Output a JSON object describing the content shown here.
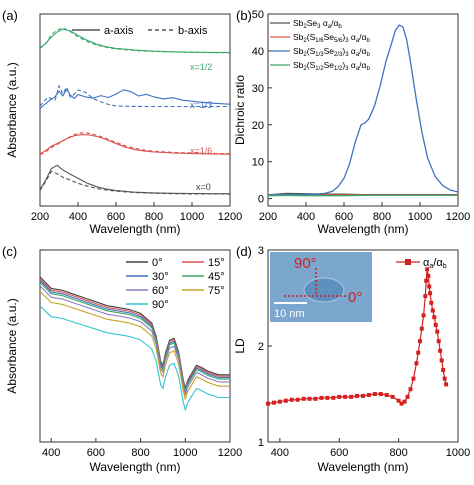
{
  "panels": {
    "a": {
      "label": "(a)"
    },
    "b": {
      "label": "(b)"
    },
    "c": {
      "label": "(c)"
    },
    "d": {
      "label": "(d)"
    }
  },
  "chart_data": [
    {
      "id": "a",
      "type": "line",
      "xlabel": "Wavelength (nm)",
      "ylabel": "Absorbance (a.u.)",
      "xlim": [
        200,
        1200
      ],
      "xticks": [
        200,
        400,
        600,
        800,
        1000,
        1200
      ],
      "yticks_shown": false,
      "legend": {
        "placement": "top",
        "entries": [
          {
            "name": "a-axis",
            "style": "solid"
          },
          {
            "name": "b-axis",
            "style": "dashed"
          }
        ]
      },
      "annotations": [
        "x=1/2",
        "x=1/3",
        "x=1/6",
        "x=0"
      ],
      "series": [
        {
          "name": "x=1/2 a-axis",
          "color": "#3aa86a",
          "style": "solid",
          "x": [
            200,
            230,
            260,
            290,
            320,
            360,
            400,
            450,
            500,
            550,
            600,
            700,
            800,
            900,
            1000,
            1100,
            1200
          ],
          "y": [
            0.822,
            0.848,
            0.88,
            0.906,
            0.921,
            0.912,
            0.889,
            0.862,
            0.842,
            0.829,
            0.821,
            0.812,
            0.806,
            0.803,
            0.801,
            0.8,
            0.799
          ]
        },
        {
          "name": "x=1/2 b-axis",
          "color": "#3aa86a",
          "style": "dashed",
          "x": [
            200,
            230,
            260,
            290,
            320,
            360,
            400,
            450,
            500,
            550,
            600,
            700,
            800,
            900,
            1000,
            1100,
            1200
          ],
          "y": [
            0.82,
            0.846,
            0.892,
            0.916,
            0.928,
            0.908,
            0.881,
            0.856,
            0.838,
            0.826,
            0.818,
            0.81,
            0.805,
            0.802,
            0.8,
            0.799,
            0.798
          ]
        },
        {
          "name": "x=1/3 a-axis",
          "color": "#3f72c0",
          "style": "solid",
          "x": [
            200,
            240,
            280,
            300,
            320,
            340,
            360,
            380,
            400,
            440,
            480,
            520,
            560,
            600,
            640,
            680,
            720,
            760,
            800,
            850,
            900,
            950,
            1000,
            1050,
            1100,
            1150,
            1200
          ],
          "y": [
            0.508,
            0.542,
            0.57,
            0.598,
            0.573,
            0.608,
            0.577,
            0.56,
            0.58,
            0.568,
            0.562,
            0.575,
            0.565,
            0.583,
            0.605,
            0.595,
            0.573,
            0.582,
            0.568,
            0.558,
            0.564,
            0.551,
            0.546,
            0.54,
            0.536,
            0.533,
            0.53
          ]
        },
        {
          "name": "x=1/3 b-axis",
          "color": "#3f72c0",
          "style": "dashed",
          "x": [
            200,
            240,
            280,
            300,
            320,
            340,
            360,
            380,
            400,
            440,
            480,
            520,
            560,
            600,
            640,
            680,
            720,
            760,
            800,
            850,
            900,
            950,
            1000,
            1050,
            1100,
            1150,
            1200
          ],
          "y": [
            0.52,
            0.566,
            0.552,
            0.626,
            0.584,
            0.619,
            0.566,
            0.582,
            0.604,
            0.592,
            0.56,
            0.542,
            0.529,
            0.521,
            0.52,
            0.519,
            0.519,
            0.518,
            0.518,
            0.518,
            0.518,
            0.518,
            0.518,
            0.518,
            0.518,
            0.518,
            0.518
          ]
        },
        {
          "name": "x=1/6 a-axis",
          "color": "#d9534f",
          "style": "solid",
          "x": [
            200,
            230,
            260,
            300,
            340,
            380,
            420,
            460,
            500,
            550,
            600,
            650,
            700,
            750,
            800,
            900,
            1000,
            1100,
            1200
          ],
          "y": [
            0.272,
            0.288,
            0.312,
            0.33,
            0.35,
            0.366,
            0.372,
            0.37,
            0.362,
            0.346,
            0.325,
            0.306,
            0.293,
            0.286,
            0.281,
            0.276,
            0.273,
            0.271,
            0.27
          ]
        },
        {
          "name": "x=1/6 b-axis",
          "color": "#d9534f",
          "style": "dashed",
          "x": [
            200,
            230,
            260,
            300,
            340,
            380,
            420,
            460,
            500,
            550,
            600,
            650,
            700,
            750,
            800,
            900,
            1000,
            1100,
            1200
          ],
          "y": [
            0.266,
            0.282,
            0.304,
            0.326,
            0.351,
            0.372,
            0.382,
            0.378,
            0.369,
            0.351,
            0.331,
            0.313,
            0.3,
            0.291,
            0.285,
            0.279,
            0.276,
            0.274,
            0.273
          ]
        },
        {
          "name": "x=0 a-axis",
          "color": "#555555",
          "style": "solid",
          "x": [
            200,
            230,
            260,
            290,
            320,
            360,
            400,
            450,
            500,
            550,
            600,
            700,
            800,
            900,
            1000,
            1100,
            1200
          ],
          "y": [
            0.085,
            0.135,
            0.195,
            0.212,
            0.188,
            0.165,
            0.145,
            0.118,
            0.1,
            0.088,
            0.08,
            0.072,
            0.068,
            0.066,
            0.065,
            0.064,
            0.064
          ]
        },
        {
          "name": "x=0 b-axis",
          "color": "#555555",
          "style": "dashed",
          "x": [
            200,
            230,
            260,
            290,
            320,
            360,
            400,
            450,
            500,
            550,
            600,
            700,
            800,
            900,
            1000,
            1100,
            1200
          ],
          "y": [
            0.08,
            0.128,
            0.18,
            0.168,
            0.15,
            0.135,
            0.118,
            0.103,
            0.091,
            0.083,
            0.077,
            0.07,
            0.066,
            0.064,
            0.063,
            0.063,
            0.062
          ]
        }
      ]
    },
    {
      "id": "b",
      "type": "line",
      "xlabel": "Wavelength (nm)",
      "ylabel": "Dichroic ratio",
      "xlim": [
        200,
        1200
      ],
      "ylim": [
        -2,
        50
      ],
      "xticks": [
        200,
        400,
        600,
        800,
        1000,
        1200
      ],
      "yticks": [
        0,
        10,
        20,
        30,
        40,
        50
      ],
      "legend": {
        "placement": "top-left"
      },
      "series": [
        {
          "name": "Sb2Se3 αa/αb",
          "color": "#555555",
          "x": [
            200,
            300,
            400,
            500,
            600,
            700,
            800,
            900,
            1000,
            1100,
            1200
          ],
          "y": [
            1.0,
            1.4,
            1.3,
            1.2,
            1.2,
            1.1,
            1.1,
            1.1,
            1.1,
            1.1,
            1.1
          ]
        },
        {
          "name": "Sb2(S1/6Se5/6)3 αa/αb",
          "color": "#d9534f",
          "x": [
            200,
            300,
            400,
            500,
            600,
            700,
            800,
            900,
            1000,
            1100,
            1200
          ],
          "y": [
            1.0,
            1.1,
            1.0,
            1.0,
            1.0,
            1.0,
            1.0,
            1.0,
            1.0,
            1.0,
            1.0
          ]
        },
        {
          "name": "Sb2(S1/3Se2/3)3 αa/αb",
          "color": "#3f72c0",
          "x": [
            200,
            300,
            400,
            450,
            500,
            540,
            570,
            600,
            630,
            660,
            690,
            710,
            730,
            760,
            790,
            820,
            850,
            870,
            890,
            910,
            930,
            950,
            980,
            1010,
            1040,
            1080,
            1120,
            1160,
            1200
          ],
          "y": [
            1.0,
            1.1,
            1.1,
            1.2,
            1.4,
            2.0,
            3.3,
            5.5,
            9.5,
            15.5,
            20.0,
            20.5,
            21.5,
            25.0,
            30.5,
            37.0,
            42.0,
            45.5,
            47.0,
            46.5,
            43.0,
            37.0,
            27.0,
            18.0,
            11.0,
            6.0,
            3.5,
            2.3,
            1.8
          ]
        },
        {
          "name": "Sb2(S1/2Se1/2)3 αa/αb",
          "color": "#3aa86a",
          "x": [
            200,
            300,
            400,
            500,
            600,
            700,
            800,
            900,
            1000,
            1100,
            1200
          ],
          "y": [
            0.8,
            0.9,
            0.8,
            0.8,
            0.8,
            0.9,
            0.9,
            0.9,
            0.9,
            0.9,
            0.9
          ]
        }
      ]
    },
    {
      "id": "c",
      "type": "line",
      "xlabel": "Wavelength (nm)",
      "ylabel": "Absorbance (a.u.)",
      "xlim": [
        350,
        1200
      ],
      "xticks": [
        400,
        600,
        800,
        1000,
        1200
      ],
      "yticks_shown": false,
      "legend": {
        "placement": "top-right",
        "columns": 2
      },
      "series": [
        {
          "name": "0°",
          "color": "#404040"
        },
        {
          "name": "15°",
          "color": "#d9534f"
        },
        {
          "name": "30°",
          "color": "#3f72c0"
        },
        {
          "name": "45°",
          "color": "#3aa86a"
        },
        {
          "name": "60°",
          "color": "#8e7cc3"
        },
        {
          "name": "75°",
          "color": "#c8a227"
        },
        {
          "name": "90°",
          "color": "#35c4d0"
        }
      ],
      "curve_template": {
        "x": [
          350,
          400,
          450,
          500,
          550,
          600,
          650,
          700,
          750,
          800,
          850,
          870,
          890,
          900,
          910,
          930,
          950,
          970,
          990,
          1000,
          1010,
          1030,
          1050,
          1070,
          1100,
          1150,
          1200
        ],
        "y": [
          0.86,
          0.8,
          0.79,
          0.77,
          0.75,
          0.73,
          0.71,
          0.7,
          0.69,
          0.67,
          0.62,
          0.55,
          0.42,
          0.4,
          0.46,
          0.53,
          0.54,
          0.47,
          0.33,
          0.28,
          0.32,
          0.36,
          0.4,
          0.39,
          0.37,
          0.35,
          0.35
        ]
      },
      "offsets": [
        0.0,
        0.01,
        0.02,
        0.03,
        0.05,
        0.08,
        0.16
      ],
      "ylim": [
        0.0,
        1.0
      ]
    },
    {
      "id": "d",
      "type": "line",
      "xlabel": "Wavelength (nm)",
      "ylabel": "LD",
      "xlim": [
        360,
        1000
      ],
      "ylim": [
        1.0,
        3.0
      ],
      "xticks": [
        400,
        600,
        800,
        1000
      ],
      "yticks": [
        1,
        2,
        3
      ],
      "legend": {
        "placement": "top-right",
        "entries": [
          {
            "name": "αa/αb",
            "color": "#d42020",
            "marker": "square"
          }
        ]
      },
      "inset": {
        "angle_labels": [
          "90°",
          "0°"
        ],
        "scale_bar": "10 nm"
      },
      "series": [
        {
          "name": "αa/αb",
          "color": "#d42020",
          "x": [
            360,
            380,
            400,
            420,
            440,
            460,
            480,
            500,
            520,
            540,
            560,
            580,
            600,
            620,
            640,
            660,
            680,
            700,
            720,
            740,
            760,
            780,
            800,
            810,
            820,
            830,
            840,
            850,
            860,
            866,
            872,
            878,
            884,
            890,
            893,
            896,
            900,
            903,
            906,
            910,
            915,
            920,
            925,
            930,
            935,
            940,
            945,
            950,
            955,
            960
          ],
          "y": [
            1.4,
            1.41,
            1.42,
            1.43,
            1.44,
            1.44,
            1.45,
            1.45,
            1.45,
            1.46,
            1.46,
            1.46,
            1.47,
            1.47,
            1.47,
            1.48,
            1.48,
            1.49,
            1.5,
            1.5,
            1.49,
            1.47,
            1.43,
            1.4,
            1.42,
            1.47,
            1.55,
            1.66,
            1.82,
            1.93,
            2.05,
            2.18,
            2.32,
            2.52,
            2.68,
            2.8,
            2.73,
            2.62,
            2.55,
            2.45,
            2.37,
            2.3,
            2.22,
            2.15,
            2.05,
            1.95,
            1.85,
            1.75,
            1.66,
            1.6
          ]
        }
      ]
    }
  ]
}
